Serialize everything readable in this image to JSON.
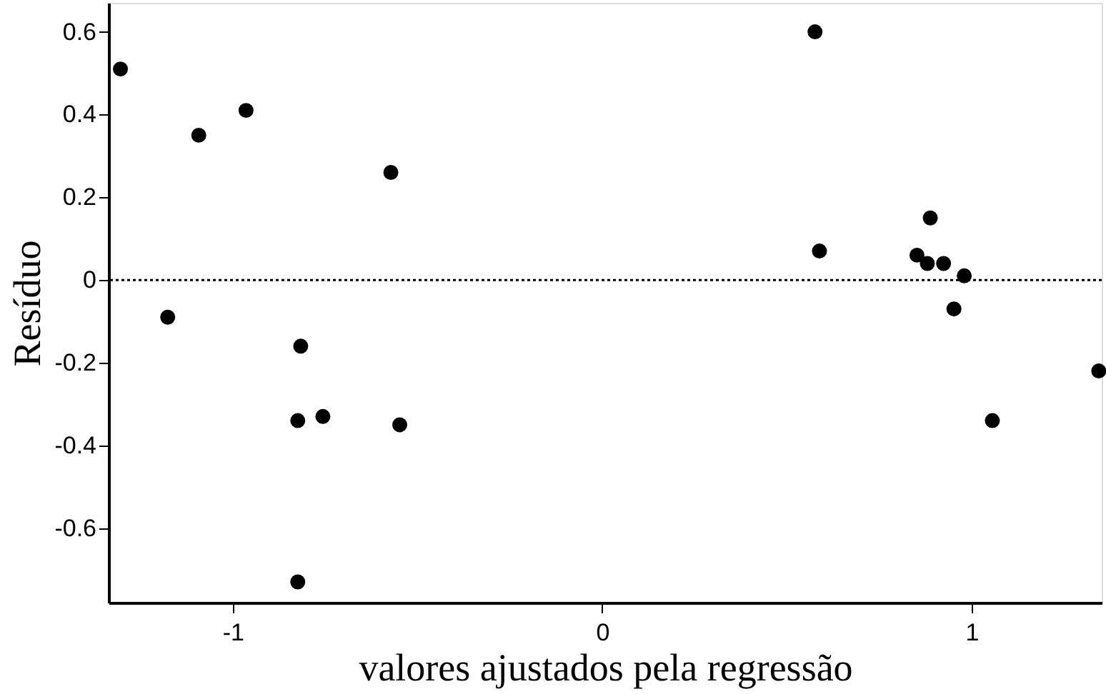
{
  "chart_data": {
    "type": "scatter",
    "xlabel": "valores ajustados pela regressão",
    "ylabel": "Resíduo",
    "x": [
      -1.304,
      -1.176,
      -1.092,
      -0.964,
      -0.816,
      -0.824,
      -0.756,
      -0.572,
      -0.548,
      -0.824,
      0.576,
      0.588,
      0.852,
      0.888,
      0.88,
      0.924,
      0.98,
      0.952,
      1.056,
      1.344
    ],
    "series": [
      {
        "color": "#000000",
        "values": [
          0.51,
          -0.09,
          0.35,
          0.41,
          -0.16,
          -0.34,
          -0.33,
          0.26,
          -0.35,
          -0.73,
          0.6,
          0.07,
          0.06,
          0.15,
          0.04,
          0.04,
          0.01,
          -0.07,
          -0.34,
          -0.22
        ]
      }
    ],
    "xlim": [
      -1.336,
      1.352
    ],
    "ylim": [
      -0.78,
      0.67
    ],
    "xticks": [
      -1,
      0,
      1
    ],
    "yticks": [
      -0.6,
      -0.4,
      -0.2,
      0,
      0.2,
      0.4,
      0.6
    ],
    "ref_lines": [
      {
        "axis": "y",
        "value": 0,
        "line_style": "dotted",
        "color": "#000000"
      }
    ],
    "marker": "circle",
    "grid": false
  }
}
